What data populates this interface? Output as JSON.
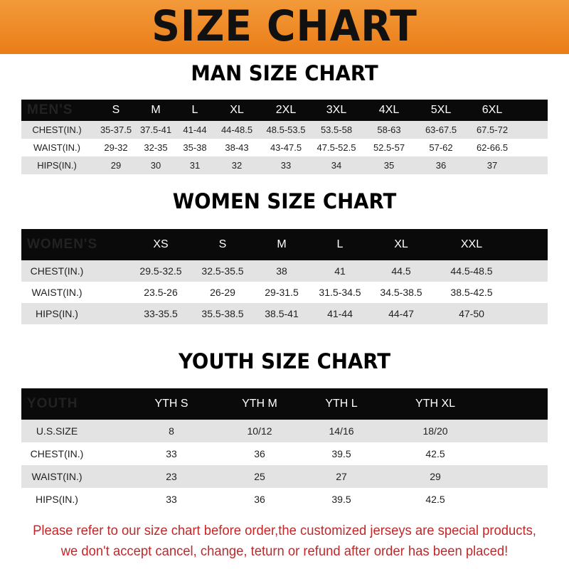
{
  "banner": {
    "title": "SIZE CHART",
    "color": "#ee8a2a"
  },
  "men": {
    "title": "MAN SIZE CHART",
    "headers": [
      "MEN'S",
      "S",
      "M",
      "L",
      "XL",
      "2XL",
      "3XL",
      "4XL",
      "5XL",
      "6XL"
    ],
    "rows": [
      [
        "CHEST(IN.)",
        "35-37.5",
        "37.5-41",
        "41-44",
        "44-48.5",
        "48.5-53.5",
        "53.5-58",
        "58-63",
        "63-67.5",
        "67.5-72"
      ],
      [
        "WAIST(IN.)",
        "29-32",
        "32-35",
        "35-38",
        "38-43",
        "43-47.5",
        "47.5-52.5",
        "52.5-57",
        "57-62",
        "62-66.5"
      ],
      [
        "HIPS(IN.)",
        "29",
        "30",
        "31",
        "32",
        "33",
        "34",
        "35",
        "36",
        "37"
      ]
    ]
  },
  "women": {
    "title": "WOMEN SIZE CHART",
    "headers": [
      "WOMEN'S",
      "XS",
      "S",
      "M",
      "L",
      "XL",
      "XXL"
    ],
    "rows": [
      [
        "CHEST(IN.)",
        "29.5-32.5",
        "32.5-35.5",
        "38",
        "41",
        "44.5",
        "44.5-48.5"
      ],
      [
        "WAIST(IN.)",
        "23.5-26",
        "26-29",
        "29-31.5",
        "31.5-34.5",
        "34.5-38.5",
        "38.5-42.5"
      ],
      [
        "HIPS(IN.)",
        "33-35.5",
        "35.5-38.5",
        "38.5-41",
        "41-44",
        "44-47",
        "47-50"
      ]
    ]
  },
  "youth": {
    "title": "YOUTH SIZE CHART",
    "headers": [
      "YOUTH",
      "YTH S",
      "YTH M",
      "YTH L",
      "YTH XL"
    ],
    "rows": [
      [
        "U.S.SIZE",
        "8",
        "10/12",
        "14/16",
        "18/20"
      ],
      [
        "CHEST(IN.)",
        "33",
        "36",
        "39.5",
        "42.5"
      ],
      [
        "WAIST(IN.)",
        "23",
        "25",
        "27",
        "29"
      ],
      [
        "HIPS(IN.)",
        "33",
        "36",
        "39.5",
        "42.5"
      ]
    ]
  },
  "notice": {
    "line1": "Please refer to our size chart before order,the customized jerseys are special products,",
    "line2": "we don't accept cancel, change, teturn or refund after order has been placed!",
    "color": "#c0282a"
  }
}
